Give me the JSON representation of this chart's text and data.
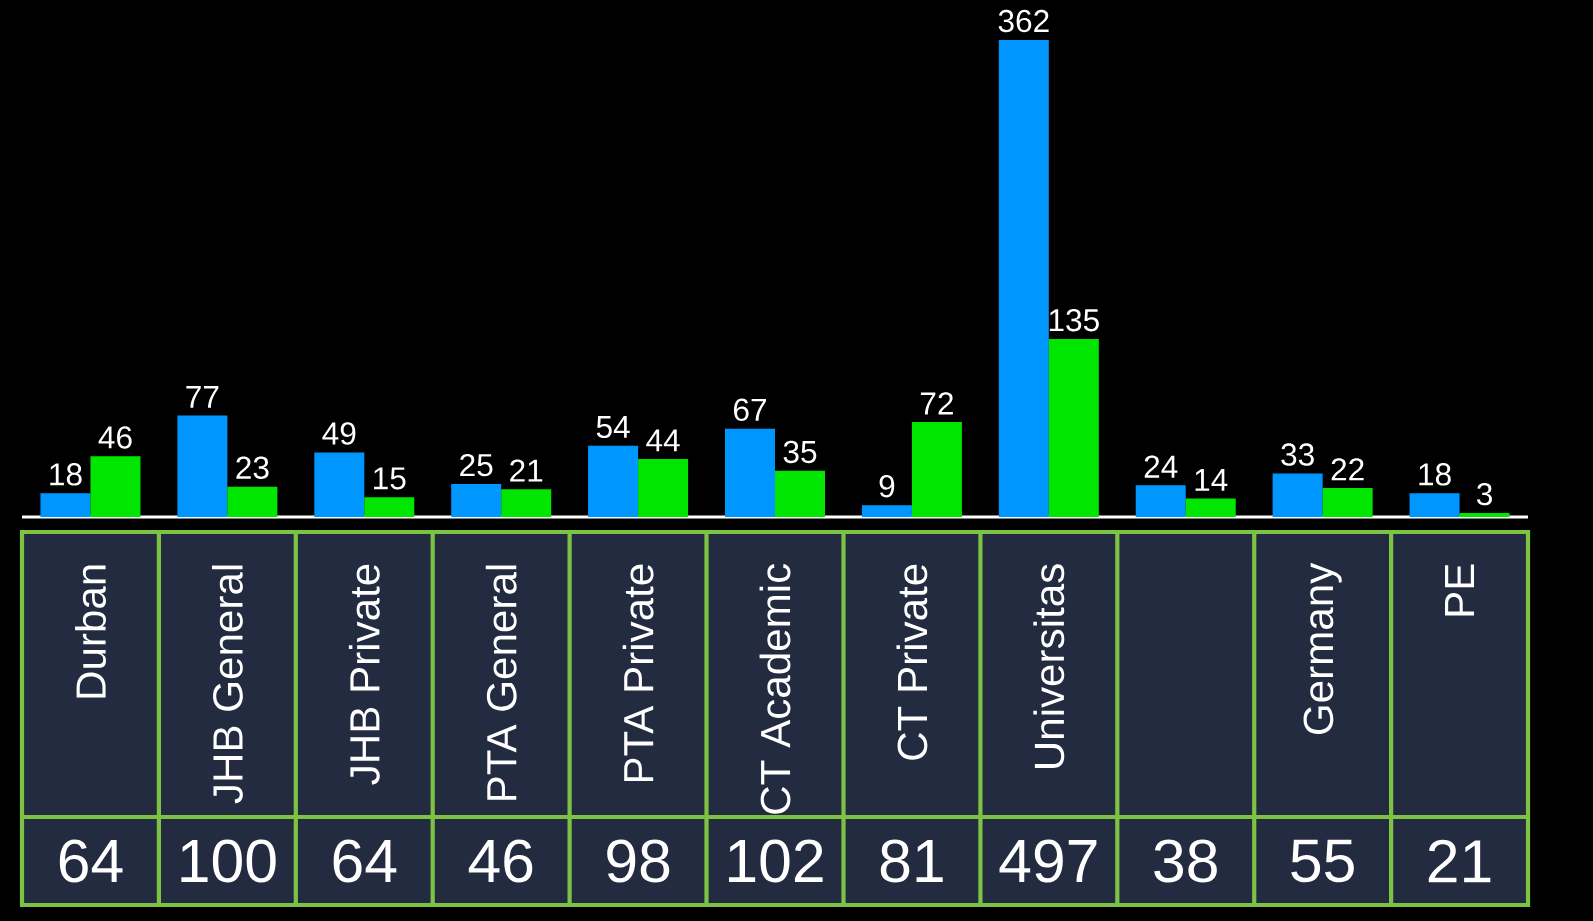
{
  "chart_data": {
    "type": "bar",
    "categories": [
      "Durban",
      "JHB General",
      "JHB Private",
      "PTA General",
      "PTA Private",
      "CT Academic",
      "CT Private",
      "Universitas",
      null,
      "Germany",
      "PE"
    ],
    "series": [
      {
        "color": "#0096ff",
        "values": [
          18,
          77,
          49,
          25,
          54,
          67,
          9,
          362,
          24,
          33,
          18
        ]
      },
      {
        "color": "#00e600",
        "values": [
          46,
          23,
          15,
          21,
          44,
          35,
          72,
          135,
          14,
          22,
          3
        ]
      }
    ],
    "data_labels": true,
    "annotations": [
      "64",
      "100",
      "64",
      "46",
      "98",
      "102",
      "81",
      "497",
      "38",
      "55",
      "21"
    ],
    "tick_labels": false
  }
}
